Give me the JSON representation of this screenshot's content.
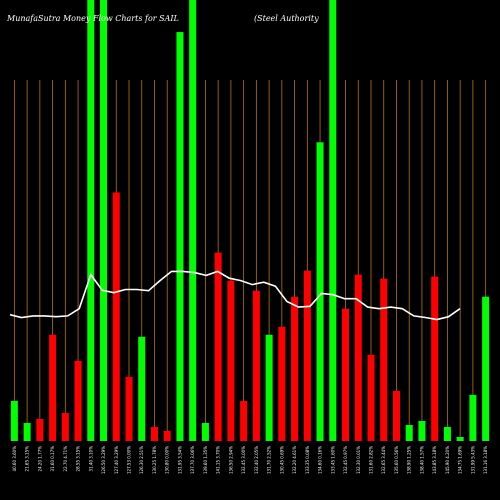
{
  "chart_data": {
    "type": "bar",
    "title": "MunafaSutra  Money Flow  Charts for SAIL",
    "subtitle": "(Steel Authority",
    "ylim": [
      0,
      110
    ],
    "colors": {
      "background": "#000000",
      "up": "#00ff00",
      "down": "#ff0000",
      "line": "#ffffff",
      "grid": "#b8730e"
    },
    "bars": [
      {
        "label": "40.60 3.60%",
        "value": 10,
        "color": "up"
      },
      {
        "label": "21.65 3.15%",
        "value": 4.5,
        "color": "up"
      },
      {
        "label": "24.20 1.77%",
        "value": 5.5,
        "color": "down"
      },
      {
        "label": "31.60 0.17%",
        "value": 26.5,
        "color": "down"
      },
      {
        "label": "22.70 4.71%",
        "value": 7,
        "color": "down"
      },
      {
        "label": "28.55 3.15%",
        "value": 20,
        "color": "down"
      },
      {
        "label": "31.40 3.10%",
        "value": 110,
        "color": "up"
      },
      {
        "label": "126.50 3.29%",
        "value": 110,
        "color": "up"
      },
      {
        "label": "127.40 3.29%",
        "value": 62,
        "color": "down"
      },
      {
        "label": "127.53 0.00%",
        "value": 16,
        "color": "down"
      },
      {
        "label": "126.30 2.51%",
        "value": 26,
        "color": "up"
      },
      {
        "label": "130.25 1.78%",
        "value": 3.5,
        "color": "down"
      },
      {
        "label": "130.80 0.00%",
        "value": 2.5,
        "color": "down"
      },
      {
        "label": "131.95 3.54%",
        "value": 102,
        "color": "up"
      },
      {
        "label": "137.70 3.06%",
        "value": 110,
        "color": "up"
      },
      {
        "label": "139.60 1.35%",
        "value": 4.5,
        "color": "up"
      },
      {
        "label": "141.15 3.70%",
        "value": 47,
        "color": "down"
      },
      {
        "label": "136.50 2.94%",
        "value": 40,
        "color": "down"
      },
      {
        "label": "132.45 3.00%",
        "value": 10,
        "color": "down"
      },
      {
        "label": "132.40 2.05%",
        "value": 37.5,
        "color": "down"
      },
      {
        "label": "131.70 2.52%",
        "value": 26.5,
        "color": "up"
      },
      {
        "label": "130.45 0.69%",
        "value": 28.5,
        "color": "down"
      },
      {
        "label": "132.20 4.61%",
        "value": 36,
        "color": "down"
      },
      {
        "label": "133.35 0.08%",
        "value": 42.5,
        "color": "down"
      },
      {
        "label": "134.60 0.16%",
        "value": 74.5,
        "color": "up"
      },
      {
        "label": "133.45 1.60%",
        "value": 110,
        "color": "up"
      },
      {
        "label": "132.45 0.97%",
        "value": 33,
        "color": "down"
      },
      {
        "label": "132.30 0.01%",
        "value": 41.5,
        "color": "down"
      },
      {
        "label": "131.60 2.82%",
        "value": 21.5,
        "color": "down"
      },
      {
        "label": "132.65 3.44%",
        "value": 40.5,
        "color": "down"
      },
      {
        "label": "135.60 0.56%",
        "value": 12.5,
        "color": "down"
      },
      {
        "label": "138.90 1.25%",
        "value": 4,
        "color": "up"
      },
      {
        "label": "138.40 1.57%",
        "value": 5,
        "color": "up"
      },
      {
        "label": "143.85 3.18%",
        "value": 41,
        "color": "down"
      },
      {
        "label": "145.90 4.20%",
        "value": 3.5,
        "color": "up"
      },
      {
        "label": "134.75 1.69%",
        "value": 1,
        "color": "up"
      },
      {
        "label": "131.99 5.43%",
        "value": 11.5,
        "color": "up"
      },
      {
        "label": "131.16 3.18%",
        "value": 36,
        "color": "up"
      }
    ],
    "line": [
      31.5,
      30.8,
      31.2,
      31.2,
      31.0,
      31.2,
      33.0,
      41.5,
      37.6,
      37.0,
      37.8,
      37.8,
      37.5,
      40.0,
      42.3,
      42.3,
      42.0,
      41.3,
      42.3,
      40.6,
      40.0,
      39.0,
      39.6,
      38.6,
      34.8,
      33.4,
      33.6,
      36.8,
      36.5,
      35.5,
      35.5,
      33.4,
      33.0,
      33.4,
      33.0,
      31.2,
      30.8,
      30.3,
      31.0,
      33.0
    ]
  }
}
